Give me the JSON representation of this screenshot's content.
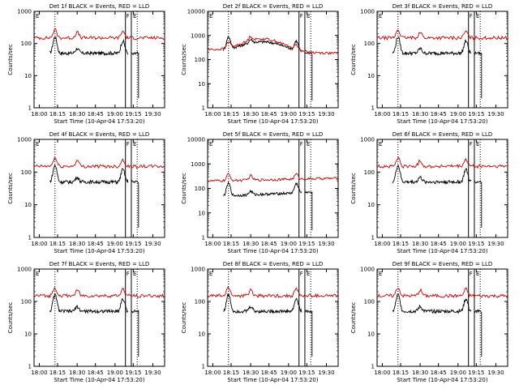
{
  "chart_data": [
    {
      "type": "line",
      "title": "Det 1f BLACK = Events, RED = LLD",
      "ylabel": "Counts/sec",
      "xlabel": "Start Time (10-Apr-04 17:53:20)",
      "x_ticks": [
        "18:00",
        "18:15",
        "18:30",
        "18:45",
        "19:00",
        "19:15",
        "19:30"
      ],
      "y_ticks": [
        "1",
        "10",
        "100",
        "1000"
      ],
      "ylim": [
        1,
        1000
      ],
      "yscale": "log",
      "markers": [
        "E",
        "F",
        "E"
      ],
      "series": [
        {
          "name": "BLACK",
          "color": "#000000",
          "profile": "a"
        },
        {
          "name": "RED",
          "color": "#cc0000",
          "profile": "a"
        }
      ]
    },
    {
      "type": "line",
      "title": "Det 2f BLACK = Events, RED = LLD",
      "ylabel": "Counts/sec",
      "xlabel": "Start Time (10-Apr-04 17:53:20)",
      "x_ticks": [
        "18:00",
        "18:15",
        "18:30",
        "18:45",
        "19:00",
        "19:15",
        "19:30"
      ],
      "y_ticks": [
        "1",
        "10",
        "100",
        "1000",
        "10000"
      ],
      "ylim": [
        1,
        10000
      ],
      "yscale": "log",
      "markers": [
        "E",
        "F",
        "E"
      ],
      "series": [
        {
          "name": "BLACK",
          "color": "#000000",
          "profile": "b"
        },
        {
          "name": "RED",
          "color": "#cc0000",
          "profile": "b"
        }
      ]
    },
    {
      "type": "line",
      "title": "Det 3f BLACK = Events, RED = LLD",
      "ylabel": "Counts/sec",
      "xlabel": "Start Time (10-Apr-04 17:53:20)",
      "x_ticks": [
        "18:00",
        "18:15",
        "18:30",
        "18:45",
        "19:00",
        "19:15",
        "19:30"
      ],
      "y_ticks": [
        "1",
        "10",
        "100",
        "1000"
      ],
      "ylim": [
        1,
        1000
      ],
      "yscale": "log",
      "markers": [
        "E",
        "F",
        "E"
      ],
      "series": [
        {
          "name": "BLACK",
          "color": "#000000",
          "profile": "a"
        },
        {
          "name": "RED",
          "color": "#cc0000",
          "profile": "a"
        }
      ]
    },
    {
      "type": "line",
      "title": "Det 4f BLACK = Events, RED = LLD",
      "ylabel": "Counts/sec",
      "xlabel": "Start Time (10-Apr-04 17:53:20)",
      "x_ticks": [
        "18:00",
        "18:15",
        "18:30",
        "18:45",
        "19:00",
        "19:15",
        "19:30"
      ],
      "y_ticks": [
        "1",
        "10",
        "100",
        "1000"
      ],
      "ylim": [
        1,
        1000
      ],
      "yscale": "log",
      "markers": [
        "E",
        "F",
        "E"
      ],
      "series": [
        {
          "name": "BLACK",
          "color": "#000000",
          "profile": "a"
        },
        {
          "name": "RED",
          "color": "#cc0000",
          "profile": "a"
        }
      ]
    },
    {
      "type": "line",
      "title": "Det 5f BLACK = Events, RED = LLD",
      "ylabel": "Counts/sec",
      "xlabel": "Start Time (10-Apr-04 17:53:20)",
      "x_ticks": [
        "18:00",
        "18:15",
        "18:30",
        "18:45",
        "19:00",
        "19:15",
        "19:30"
      ],
      "y_ticks": [
        "1",
        "10",
        "100",
        "1000",
        "10000"
      ],
      "ylim": [
        1,
        10000
      ],
      "yscale": "log",
      "markers": [
        "E",
        "F",
        "E"
      ],
      "series": [
        {
          "name": "BLACK",
          "color": "#000000",
          "profile": "c"
        },
        {
          "name": "RED",
          "color": "#cc0000",
          "profile": "c"
        }
      ]
    },
    {
      "type": "line",
      "title": "Det 6f BLACK = Events, RED = LLD",
      "ylabel": "Counts/sec",
      "xlabel": "Start Time (10-Apr-04 17:53:20)",
      "x_ticks": [
        "18:00",
        "18:15",
        "18:30",
        "18:45",
        "19:00",
        "19:15",
        "19:30"
      ],
      "y_ticks": [
        "1",
        "10",
        "100",
        "1000"
      ],
      "ylim": [
        1,
        1000
      ],
      "yscale": "log",
      "markers": [
        "E",
        "F",
        "E"
      ],
      "series": [
        {
          "name": "BLACK",
          "color": "#000000",
          "profile": "a"
        },
        {
          "name": "RED",
          "color": "#cc0000",
          "profile": "a"
        }
      ]
    },
    {
      "type": "line",
      "title": "Det 7f BLACK = Events, RED = LLD",
      "ylabel": "Counts/sec",
      "xlabel": "Start Time (10-Apr-04 17:53:20)",
      "x_ticks": [
        "18:00",
        "18:15",
        "18:30",
        "18:45",
        "19:00",
        "19:15",
        "19:30"
      ],
      "y_ticks": [
        "1",
        "10",
        "100",
        "1000"
      ],
      "ylim": [
        1,
        1000
      ],
      "yscale": "log",
      "markers": [
        "E",
        "F",
        "E"
      ],
      "series": [
        {
          "name": "BLACK",
          "color": "#000000",
          "profile": "a"
        },
        {
          "name": "RED",
          "color": "#cc0000",
          "profile": "a"
        }
      ]
    },
    {
      "type": "line",
      "title": "Det 8f BLACK = Events, RED = LLD",
      "ylabel": "Counts/sec",
      "xlabel": "Start Time (10-Apr-04 17:53:20)",
      "x_ticks": [
        "18:00",
        "18:15",
        "18:30",
        "18:45",
        "19:00",
        "19:15",
        "19:30"
      ],
      "y_ticks": [
        "1",
        "10",
        "100",
        "1000"
      ],
      "ylim": [
        1,
        1000
      ],
      "yscale": "log",
      "markers": [
        "E",
        "F",
        "E"
      ],
      "series": [
        {
          "name": "BLACK",
          "color": "#000000",
          "profile": "a"
        },
        {
          "name": "RED",
          "color": "#cc0000",
          "profile": "a"
        }
      ]
    },
    {
      "type": "line",
      "title": "Det 9f BLACK = Events, RED = LLD",
      "ylabel": "Counts/sec",
      "xlabel": "Start Time (10-Apr-04 17:53:20)",
      "x_ticks": [
        "18:00",
        "18:15",
        "18:30",
        "18:45",
        "19:00",
        "19:15",
        "19:30"
      ],
      "y_ticks": [
        "1",
        "10",
        "100",
        "1000"
      ],
      "ylim": [
        1,
        1000
      ],
      "yscale": "log",
      "markers": [
        "E",
        "F",
        "E"
      ],
      "series": [
        {
          "name": "BLACK",
          "color": "#000000",
          "profile": "a"
        },
        {
          "name": "RED",
          "color": "#cc0000",
          "profile": "a"
        }
      ]
    }
  ]
}
